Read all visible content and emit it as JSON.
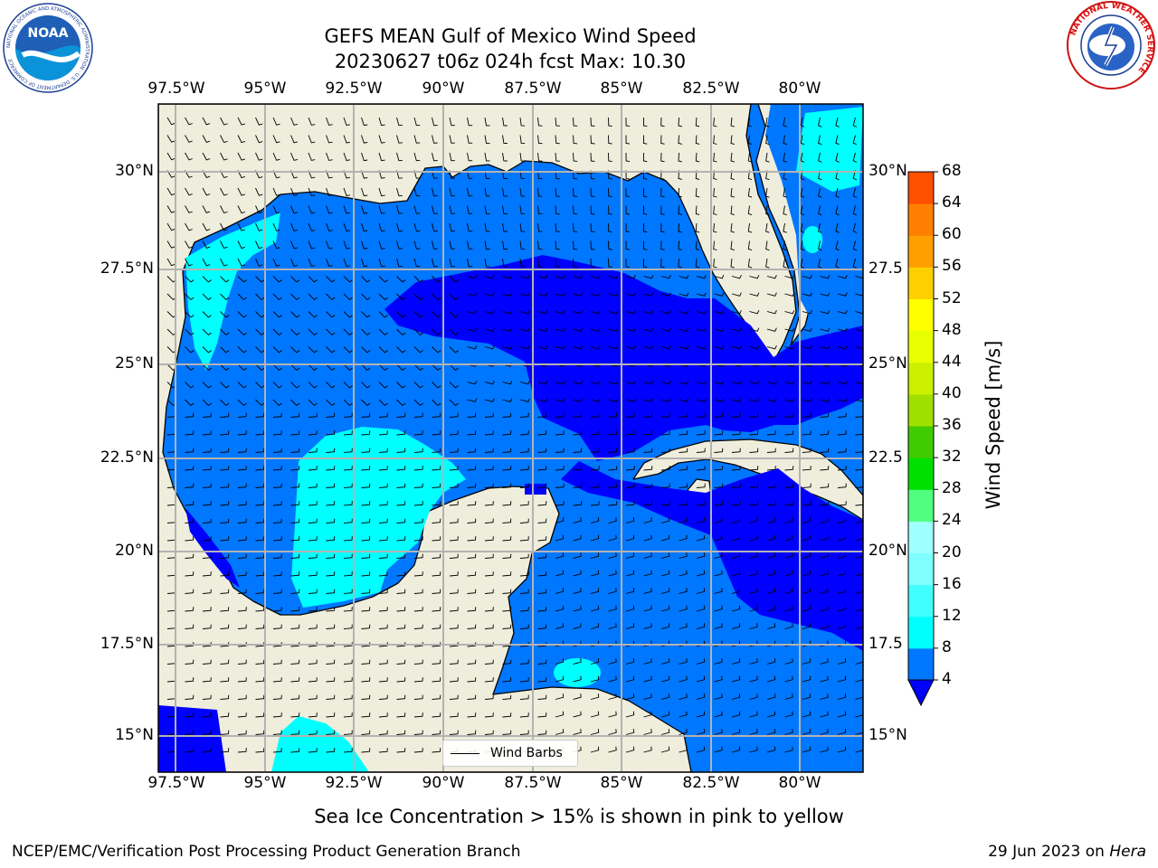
{
  "title_line1": "GEFS MEAN Gulf of Mexico Wind Speed",
  "title_line2": "20230627 t06z 024h fcst   Max: 10.30",
  "lon_labels": [
    "97.5°W",
    "95°W",
    "92.5°W",
    "90°W",
    "87.5°W",
    "85°W",
    "82.5°W",
    "80°W"
  ],
  "lat_labels_left": [
    "30°N",
    "27.5°N",
    "25°N",
    "22.5°N",
    "20°N",
    "17.5°N",
    "15°N"
  ],
  "lat_labels_right": [
    "30°N",
    "27.5",
    "25°N",
    "22.5",
    "20°N",
    "17.5",
    "15°N"
  ],
  "legend_label": "Wind Barbs",
  "colorbar": {
    "title": "Wind Speed [m/s]",
    "ticks": [
      "4",
      "8",
      "12",
      "16",
      "20",
      "24",
      "28",
      "32",
      "36",
      "40",
      "44",
      "48",
      "52",
      "56",
      "60",
      "64",
      "68"
    ],
    "colors": [
      "#0077ff",
      "#00ffff",
      "#40ffff",
      "#80ffff",
      "#a0ffff",
      "#50ff80",
      "#00e000",
      "#40cc00",
      "#a0e000",
      "#ccf000",
      "#e8ff00",
      "#ffff00",
      "#ffd000",
      "#ffa000",
      "#ff8000",
      "#ff5000",
      "#ff2000"
    ],
    "extend_color": "#0000ff"
  },
  "map_colors": {
    "land": "#efeddc",
    "ws_lt4": "#0000ff",
    "ws_4_8": "#0077ff",
    "ws_8_12": "#00ffff",
    "ws_12_16": "#40ffff",
    "grid": "#b3b3b3"
  },
  "noaa_logo": {
    "text": "NOAA",
    "ring_text": "NATIONAL OCEANIC AND ATMOSPHERIC ADMINISTRATION · U.S. DEPARTMENT OF COMMERCE"
  },
  "nws_logo": {
    "ring_text": "NATIONAL WEATHER SERVICE"
  },
  "footer_note": "Sea Ice Concentration > 15% is shown in pink to yellow",
  "credit_left": "NCEP/EMC/Verification Post Processing Product Generation Branch",
  "credit_date": "29 Jun 2023 on ",
  "credit_host": "Hera"
}
